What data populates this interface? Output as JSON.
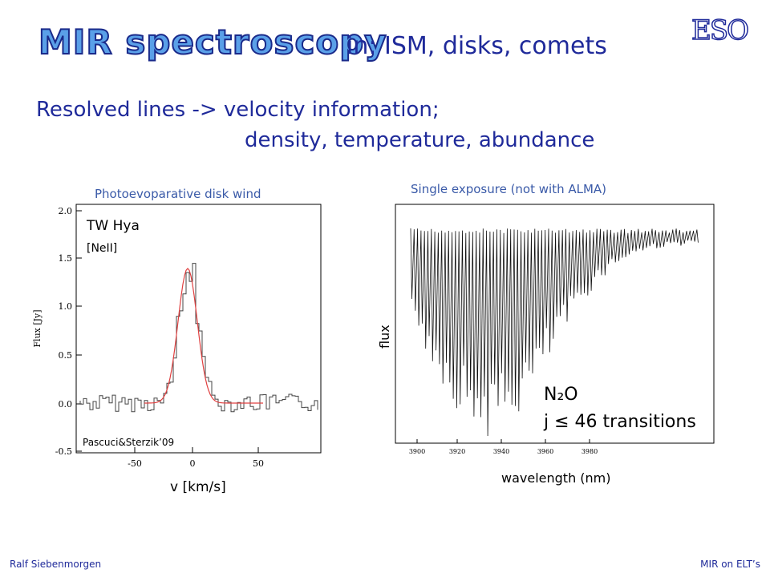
{
  "header": {
    "title_highlight": "MIR spectroscopy",
    "title_rest": "in: ISM, disks, comets",
    "logo": "ESO"
  },
  "subtitle": {
    "line1": "Resolved lines -> velocity information;",
    "line2": "density, temperature, abundance"
  },
  "left_plot": {
    "caption": "Photoevoparative disk wind",
    "ylabel": "Flux [Jy]",
    "xlabel": "v [km/s]",
    "object": "TW Hya",
    "line": "[NeII]",
    "credit": "Pascuci&Sterzik’09",
    "yticks": [
      "2.0",
      "1.5",
      "1.0",
      "0.5",
      "0.0",
      "-0.5"
    ],
    "xticks": [
      "-50",
      "0",
      "50"
    ]
  },
  "right_plot": {
    "caption": "Single exposure (not with ALMA)",
    "ylabel": "flux",
    "xlabel": "wavelength (nm)",
    "molecule": "N₂O",
    "note": "j ≤ 46 transitions",
    "xticks": [
      "3900",
      "3920",
      "3940",
      "3960",
      "3980"
    ]
  },
  "footer": {
    "author": "Ralf Siebenmorgen",
    "topic": "MIR on ELT’s"
  }
}
